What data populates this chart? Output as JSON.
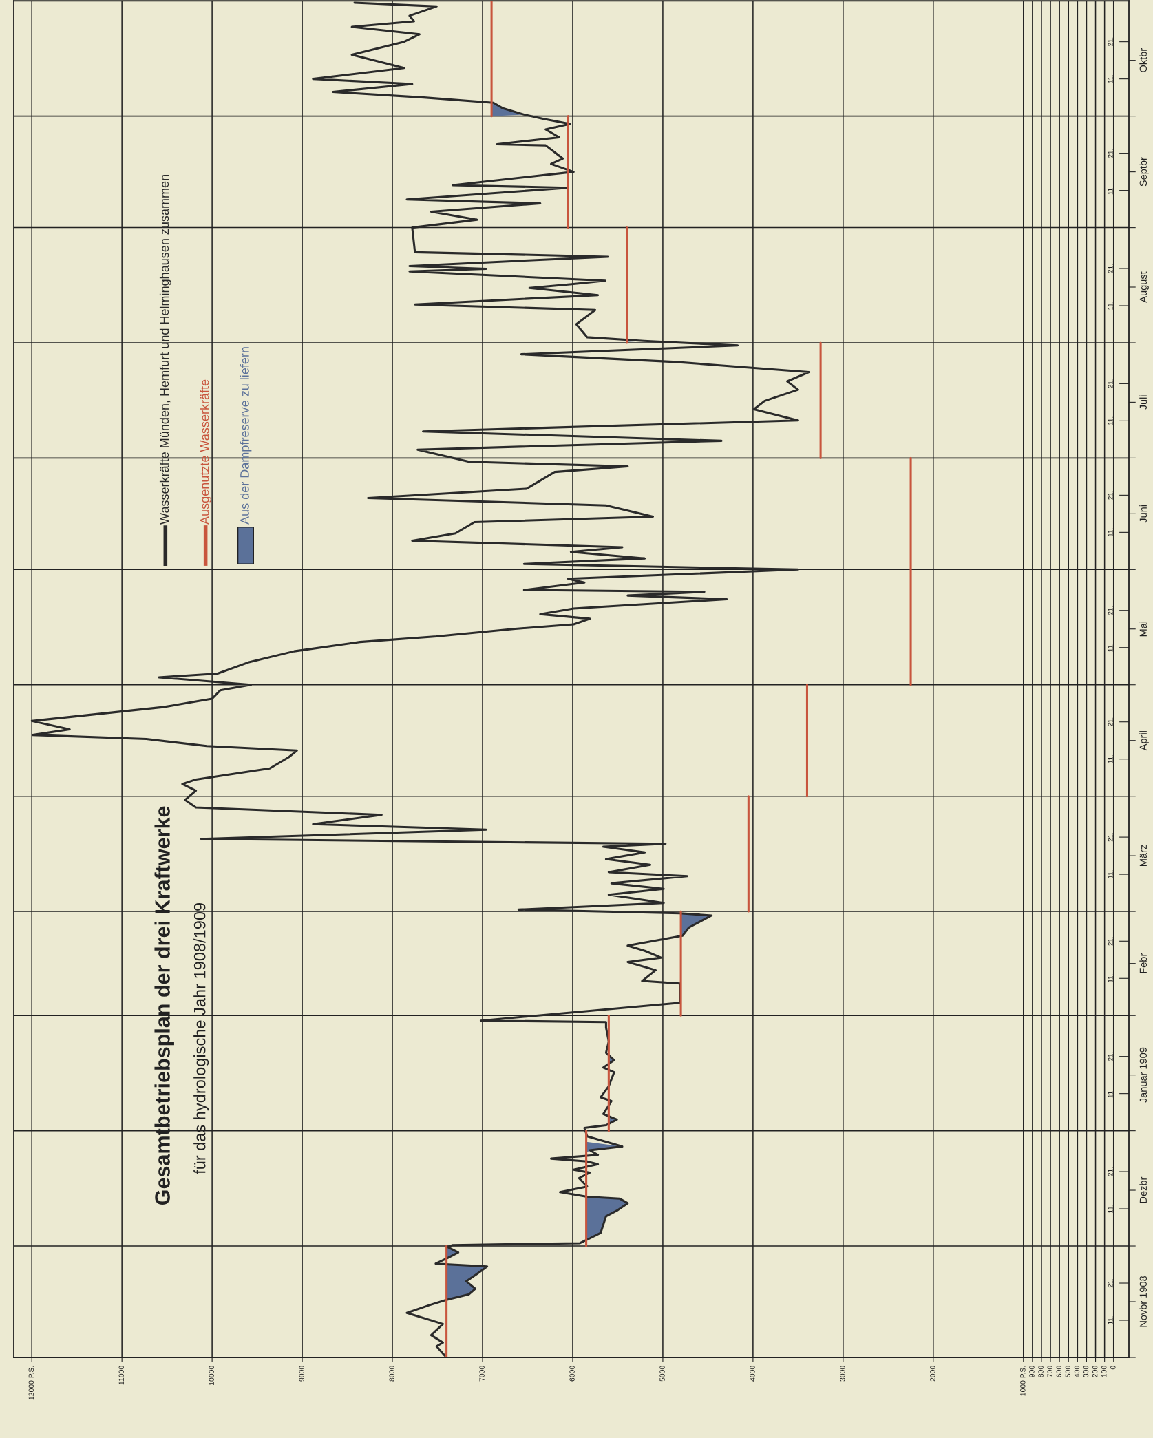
{
  "chart_data": {
    "type": "line",
    "orientation": "horizontal",
    "title": "Gesamtbetriebsplan der drei Kraftwerke",
    "subtitle": "für das hydrologische Jahr 1908/1909",
    "xlim": [
      12200,
      -170
    ],
    "xticks": [
      {
        "value": 12000,
        "label": "12000 P.S."
      },
      11000,
      10000,
      9000,
      8000,
      7000,
      6000,
      5000,
      4000,
      3000,
      2000,
      {
        "value": 1000,
        "label": "1000 P.S."
      },
      900,
      800,
      700,
      600,
      500,
      400,
      300,
      200,
      100,
      0
    ],
    "ylim": [
      "1908-11-01",
      "1909-11-01"
    ],
    "yticks": [
      {
        "value": "1908-11-01",
        "label": null
      },
      {
        "value": "1908-12-01",
        "label": null
      },
      {
        "value": "1909-01-01",
        "label": null
      },
      {
        "value": "1909-02-01",
        "label": null
      },
      {
        "value": "1909-03-01",
        "label": null
      },
      {
        "value": "1909-04-01",
        "label": null
      },
      {
        "value": "1909-05-01",
        "label": null
      },
      {
        "value": "1909-06-01",
        "label": null
      },
      {
        "value": "1909-07-01",
        "label": null
      },
      {
        "value": "1909-08-01",
        "label": null
      },
      {
        "value": "1909-09-01",
        "label": null
      },
      {
        "value": "1909-10-01",
        "label": null
      },
      {
        "value": "1908-11-16",
        "label": "Novbr 1908"
      },
      {
        "value": "1908-12-16",
        "label": "Dezbr"
      },
      {
        "value": "1909-01-16",
        "label": "Januar 1909"
      },
      {
        "value": "1909-02-15",
        "label": "Febr"
      },
      {
        "value": "1909-03-16",
        "label": "März"
      },
      {
        "value": "1909-04-16",
        "label": "April"
      },
      {
        "value": "1909-05-16",
        "label": "Mai"
      },
      {
        "value": "1909-06-16",
        "label": "Juni"
      },
      {
        "value": "1909-07-16",
        "label": "Juli"
      },
      {
        "value": "1909-08-16",
        "label": "August"
      },
      {
        "value": "1909-09-16",
        "label": "Septbr"
      },
      {
        "value": "1909-10-16",
        "label": "Oktbr"
      }
    ],
    "y2lim": [
      "1908-11-01",
      "1909-11-01"
    ],
    "y2ticks": [
      {
        "value": "1908-11-11",
        "label": "11."
      },
      {
        "value": "1908-11-21",
        "label": "21."
      },
      {
        "value": "1908-12-11",
        "label": "11."
      },
      {
        "value": "1908-12-21",
        "label": "21."
      },
      {
        "value": "1909-01-11",
        "label": "11."
      },
      {
        "value": "1909-01-21",
        "label": "21."
      },
      {
        "value": "1909-02-11",
        "label": "11."
      },
      {
        "value": "1909-02-21",
        "label": "21."
      },
      {
        "value": "1909-03-11",
        "label": "11."
      },
      {
        "value": "1909-03-21",
        "label": "21."
      },
      {
        "value": "1909-04-11",
        "label": "11."
      },
      {
        "value": "1909-04-21",
        "label": "21."
      },
      {
        "value": "1909-05-11",
        "label": "11."
      },
      {
        "value": "1909-05-21",
        "label": "21."
      },
      {
        "value": "1909-06-11",
        "label": "11."
      },
      {
        "value": "1909-06-21",
        "label": "21."
      },
      {
        "value": "1909-07-11",
        "label": "11."
      },
      {
        "value": "1909-07-21",
        "label": "21."
      },
      {
        "value": "1909-08-11",
        "label": "11."
      },
      {
        "value": "1909-08-21",
        "label": "21."
      },
      {
        "value": "1909-09-11",
        "label": "11."
      },
      {
        "value": "1909-09-21",
        "label": "21."
      },
      {
        "value": "1909-10-11",
        "label": "11."
      },
      {
        "value": "1909-10-21",
        "label": "21."
      }
    ],
    "grid": true,
    "legend": "top left",
    "series": [
      {
        "name": "Wasserkräfte Münden, Hemfurt und Helminghausen zusammen",
        "color": "#2a2a2a",
        "x": [
          "1908-11-01T12:00",
          "1908-11-04",
          "1908-11-05",
          "1908-11-07",
          "1908-11-10",
          "1908-11-13",
          "1908-11-15",
          "1908-11-16T12:00",
          "1908-11-18",
          "1908-11-19T12:00",
          "1908-11-21T12:00",
          "1908-11-23T12:00",
          "1908-11-25T12:00",
          "1908-11-26T06:00",
          "1908-11-27T18:00",
          "1908-11-29T06:00",
          "1908-11-30T18:00",
          "1908-12-01T06:00",
          "1908-12-01T18:00",
          "1908-12-04T12:00",
          "1908-12-09",
          "1908-12-10T12:00",
          "1908-12-12T12:00",
          "1908-12-13T18:00",
          "1908-12-14T06:00",
          "1908-12-15T12:00",
          "1908-12-17",
          "1908-12-19T06:00",
          "1908-12-20T18:00",
          "1908-12-21T12:00",
          "1908-12-23",
          "1908-12-23T18:00",
          "1908-12-24T12:00",
          "1908-12-25T12:00",
          "1908-12-26T18:00",
          "1908-12-27T18:00",
          "1908-12-30T12:00",
          "1909-01-01T18:00",
          "1909-01-02T12:00",
          "1909-01-04",
          "1909-01-05T12:00",
          "1909-01-09",
          "1909-01-10",
          "1909-01-13",
          "1909-01-16T18:00",
          "1909-01-18",
          "1909-01-20",
          "1909-01-22",
          "1909-01-25",
          "1909-01-28T18:00",
          "1909-01-30T06:00",
          "1909-01-30T15:00",
          "1909-02-04T10:00",
          "1909-02-09T15:00",
          "1909-02-10T07:00",
          "1909-02-13T05:00",
          "1909-02-15T10:00",
          "1909-02-16T14:00",
          "1909-02-18T10:00",
          "1909-02-19T19:00",
          "1909-02-21T14:00",
          "1909-02-22T12:00",
          "1909-02-24T17:00",
          "1909-02-27T22:00",
          "1909-02-28T12:00",
          "1909-03-01T12:00",
          "1909-03-03T07:00",
          "1909-03-05T12:00",
          "1909-03-07T02:00",
          "1909-03-08T14:00",
          "1909-03-10T12:00",
          "1909-03-11T14:00",
          "1909-03-13T14:00",
          "1909-03-15T02:00",
          "1909-03-16T22:00",
          "1909-03-18T10:00",
          "1909-03-19T05:00",
          "1909-03-20T12:00",
          "1909-03-23",
          "1909-03-24T12:00",
          "1909-03-27",
          "1909-03-29",
          "1909-03-31",
          "1909-04-02T12:00",
          "1909-04-04T07:00",
          "1909-04-05T12:00",
          "1909-04-08T12:00",
          "1909-04-11T12:00",
          "1909-04-13T07:00",
          "1909-04-14T12:00",
          "1909-04-16T10:00",
          "1909-04-17T12:00",
          "1909-04-19",
          "1909-04-21T06:00",
          "1909-04-25",
          "1909-04-27T06:00",
          "1909-04-29T12:00",
          "1909-05-01",
          "1909-05-03",
          "1909-05-04",
          "1909-05-07",
          "1909-05-10",
          "1909-05-12T12:00",
          "1909-05-14",
          "1909-05-16",
          "1909-05-17T06:00",
          "1909-05-18T18:00",
          "1909-05-20",
          "1909-05-21T12:00",
          "1909-05-24",
          "1909-05-25",
          "1909-05-26",
          "1909-05-26T12:00",
          "1909-05-28T12:00",
          "1909-05-29T12:00",
          "1909-06-01",
          "1909-06-02T12:00",
          "1909-06-04",
          "1909-06-05T18:00",
          "1909-06-07",
          "1909-06-08T18:00",
          "1909-06-10T18:00",
          "1909-06-13T18:00",
          "1909-06-15T06:00",
          "1909-06-18T06:00",
          "1909-06-20T06:00",
          "1909-06-22T18:00",
          "1909-06-27T06:00",
          "1909-06-28T18:00",
          "1909-06-30",
          "1909-07-03T06:00",
          "1909-07-05T15:00",
          "1909-07-08T04:00",
          "1909-07-11T03:00",
          "1909-07-12T15:00",
          "1909-07-14T03:00",
          "1909-07-16T09:00",
          "1909-07-19T09:00",
          "1909-07-21T15:00",
          "1909-07-24T03:00",
          "1909-07-26T20:00",
          "1909-07-28T22:00",
          "1909-07-31T07:00",
          "1909-08-01T12:00",
          "1909-08-02T12:00",
          "1909-08-06",
          "1909-08-09T20:00",
          "1909-08-11T08:00",
          "1909-08-13T20:00",
          "1909-08-15T18:00",
          "1909-08-16T19:00",
          "1909-08-17T17:00",
          "1909-08-20T05:00",
          "1909-08-20T22:00",
          "1909-08-21T16:00",
          "1909-08-24T04:00",
          "1909-08-25T09:00",
          "1909-09-01",
          "1909-09-03T03:00",
          "1909-09-05T07:00",
          "1909-09-07T12:00",
          "1909-09-08T14:00",
          "1909-09-11T17:00",
          "1909-09-12T10:00",
          "1909-09-16",
          "1909-09-18T03:00",
          "1909-09-19T14:00",
          "1909-09-23T03:00",
          "1909-09-23T10:00",
          "1909-09-25T07:00",
          "1909-09-27T10:00",
          "1909-09-28T21:00",
          "1909-09-30T07:00",
          "1909-10-01T10:00",
          "1909-10-03T04:00",
          "1909-10-04T14:00",
          "1909-10-06",
          "1909-10-07T12:00",
          "1909-10-09T15:00",
          "1909-10-11",
          "1909-10-13T23:00",
          "1909-10-17T12:00",
          "1909-10-21",
          "1909-10-23",
          "1909-10-25",
          "1909-10-26T12:00",
          "1909-10-28",
          "1909-10-30T12:00",
          "1909-10-31T12:00"
        ],
        "values": [
          7420,
          7510,
          7440,
          7570,
          7440,
          7840,
          7600,
          7400,
          7150,
          7080,
          7180,
          7060,
          6950,
          7520,
          7390,
          7270,
          7390,
          7330,
          5920,
          5690,
          5630,
          5510,
          5390,
          5480,
          5840,
          6140,
          5840,
          5930,
          5810,
          5990,
          5720,
          5840,
          6240,
          5720,
          5810,
          5450,
          5840,
          5870,
          5630,
          5510,
          5660,
          5570,
          5690,
          5600,
          5540,
          5660,
          5540,
          5630,
          5600,
          5630,
          5630,
          7020,
          4810,
          4810,
          5230,
          5080,
          5390,
          5020,
          5200,
          5390,
          4990,
          4780,
          4710,
          4460,
          4810,
          6600,
          4990,
          5600,
          4990,
          5570,
          4730,
          5600,
          5140,
          5630,
          5200,
          5660,
          4970,
          10120,
          6960,
          8880,
          8120,
          10180,
          10300,
          10180,
          10330,
          10180,
          9360,
          9150,
          9060,
          10060,
          10730,
          11990,
          11580,
          12000,
          10540,
          10000,
          9910,
          9570,
          10590,
          9940,
          9600,
          9090,
          8360,
          7510,
          6660,
          5990,
          5810,
          6360,
          5990,
          4290,
          5390,
          4540,
          6540,
          5870,
          6050,
          3500,
          6540,
          5200,
          6020,
          5450,
          7780,
          7300,
          7090,
          5110,
          5630,
          8270,
          6510,
          6200,
          5390,
          7150,
          7720,
          4350,
          7660,
          3500,
          3750,
          3990,
          3870,
          3500,
          3620,
          3380,
          4850,
          6570,
          4170,
          5210,
          5840,
          5960,
          5750,
          7750,
          5720,
          6480,
          6010,
          5640,
          7810,
          6960,
          7810,
          5610,
          7750,
          7780,
          7060,
          7570,
          6360,
          7840,
          6050,
          7330,
          5990,
          6240,
          6110,
          6300,
          6840,
          6150,
          6300,
          6030,
          6330,
          6540,
          6780,
          6880,
          7650,
          8660,
          7780,
          8880,
          7870,
          8450,
          7870,
          7700,
          8450,
          7760,
          7810,
          7510,
          8420
        ]
      },
      {
        "name": "Ausgenutzte Wasserkräfte",
        "color": "#c8553d",
        "x": [
          "1908-11-01",
          "1908-12-01"
        ],
        "values": [
          7400,
          7400
        ]
      },
      {
        "color": "#c8553d",
        "x": [
          "1908-12-01",
          "1909-01-01"
        ],
        "values": [
          5850,
          5850
        ]
      },
      {
        "color": "#c8553d",
        "x": [
          "1909-01-01",
          "1909-02-01"
        ],
        "values": [
          5600,
          5600
        ]
      },
      {
        "color": "#c8553d",
        "x": [
          "1909-02-01",
          "1909-03-01"
        ],
        "values": [
          4800,
          4800
        ]
      },
      {
        "color": "#c8553d",
        "x": [
          "1909-03-01",
          "1909-04-01"
        ],
        "values": [
          4050,
          4050
        ]
      },
      {
        "color": "#c8553d",
        "x": [
          "1909-04-01",
          "1909-05-01"
        ],
        "values": [
          3400,
          3400
        ]
      },
      {
        "color": "#c8553d",
        "x": [
          "1909-05-01",
          "1909-07-01"
        ],
        "values": [
          2250,
          2250
        ]
      },
      {
        "color": "#c8553d",
        "x": [
          "1909-07-01",
          "1909-08-01"
        ],
        "values": [
          3250,
          3250
        ]
      },
      {
        "color": "#c8553d",
        "x": [
          "1909-08-01",
          "1909-09-01"
        ],
        "values": [
          5400,
          5400
        ]
      },
      {
        "color": "#c8553d",
        "x": [
          "1909-09-01",
          "1909-10-01"
        ],
        "values": [
          6050,
          6050
        ]
      },
      {
        "color": "#c8553d",
        "x": [
          "1909-10-01",
          "1909-11-01"
        ],
        "values": [
          6900,
          6900
        ]
      },
      {
        "name": "Aus der Dampfreserve zu liefern",
        "type": "area",
        "color": "#5b7199",
        "x": [
          "1908-11-16T12:00",
          "1908-11-18",
          "1908-11-19T12:00",
          "1908-11-21T12:00",
          "1908-11-23T12:00",
          "1908-11-25T12:00",
          "1908-11-26"
        ],
        "values": [
          7400,
          7150,
          7080,
          7180,
          7060,
          6950,
          7400
        ]
      },
      {
        "type": "area",
        "color": "#5b7199",
        "x": [
          "1908-11-27T06:00",
          "1908-11-27T18:00",
          "1908-11-29T06:00",
          "1908-11-30T18:00",
          "1908-12-01T06:00"
        ],
        "values": [
          7400,
          7390,
          7270,
          7390,
          7400
        ]
      },
      {
        "type": "area",
        "color": "#5b7199",
        "x": [
          "1908-12-03",
          "1908-12-04T12:00",
          "1908-12-09",
          "1908-12-10T12:00",
          "1908-12-12T12:00",
          "1908-12-13T18:00",
          "1908-12-14T06:00"
        ],
        "values": [
          5850,
          5690,
          5630,
          5510,
          5390,
          5480,
          5850
        ]
      },
      {
        "type": "area",
        "color": "#5b7199",
        "x": [
          "1908-12-26",
          "1908-12-26T18:00",
          "1908-12-27T18:00",
          "1908-12-29"
        ],
        "values": [
          5850,
          5810,
          5450,
          5850
        ]
      },
      {
        "type": "area",
        "color": "#5b7199",
        "x": [
          "1909-01-03",
          "1909-01-04",
          "1909-01-05"
        ],
        "values": [
          5600,
          5510,
          5600
        ]
      },
      {
        "type": "area",
        "color": "#5b7199",
        "x": [
          "1909-01-19",
          "1909-01-20",
          "1909-01-21"
        ],
        "values": [
          5600,
          5540,
          5600
        ]
      },
      {
        "type": "area",
        "color": "#5b7199",
        "x": [
          "1909-02-22",
          "1909-02-22T12:00",
          "1909-02-24T17:00",
          "1909-02-27T22:00",
          "1909-02-28T12:00"
        ],
        "values": [
          4800,
          4780,
          4710,
          4460,
          4800
        ]
      },
      {
        "type": "area",
        "color": "#5b7199",
        "x": [
          "1909-08-01T06:00",
          "1909-08-01T12:00",
          "1909-08-02"
        ],
        "values": [
          5400,
          5210,
          5400
        ]
      },
      {
        "type": "area",
        "color": "#5b7199",
        "x": [
          "1909-10-01",
          "1909-10-01T10:00",
          "1909-10-03T04:00",
          "1909-10-04T14:00"
        ],
        "values": [
          6900,
          6540,
          6780,
          6900
        ]
      }
    ]
  }
}
